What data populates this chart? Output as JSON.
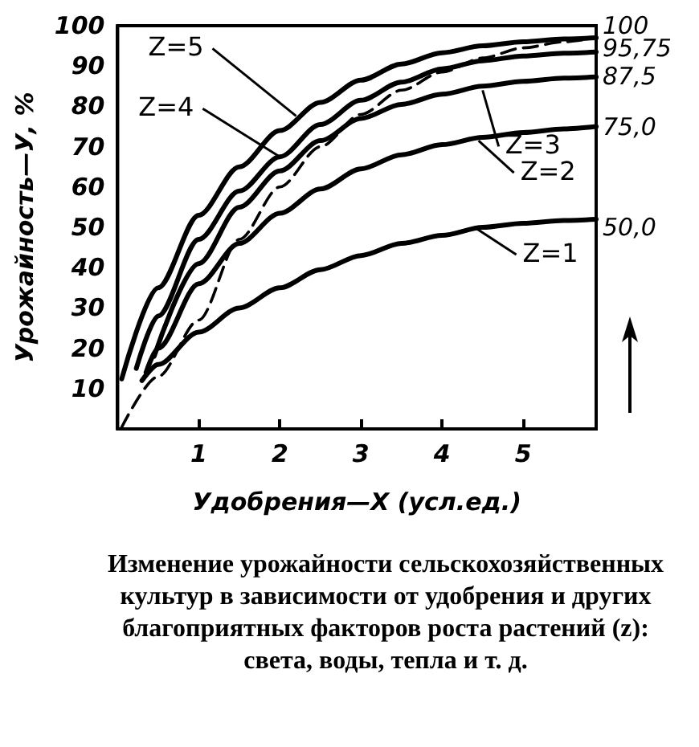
{
  "chart_data": {
    "type": "line",
    "title": "Изменение урожайности сельскохозяйственных культур в зависимости от удобрения и других благоприятных факторов роста растений (z): света, воды, тепла и т. д.",
    "xlabel": "Удобрения—X (усл.ед.)",
    "ylabel": "Урожайность—У, %",
    "xlim": [
      0,
      5.9
    ],
    "xticks": [
      1,
      2,
      3,
      4,
      5
    ],
    "ylim": [
      0,
      100
    ],
    "yticks": [
      10,
      20,
      30,
      40,
      50,
      60,
      70,
      80,
      90,
      100
    ],
    "y2lim": [
      0,
      100
    ],
    "y2ticks": [
      {
        "value": 100,
        "label": "100"
      },
      {
        "value": 95.75,
        "label": "95,75"
      },
      {
        "value": 87.5,
        "label": "87,5"
      },
      {
        "value": 75,
        "label": "75,0"
      },
      {
        "value": 50,
        "label": "50,0"
      }
    ],
    "grid": false,
    "marker": "none",
    "series": [
      {
        "color": "#000000",
        "line_style": "solid",
        "x": [
          0.3,
          0.5,
          1,
          1.5,
          2,
          2.5,
          3,
          3.5,
          4,
          4.5,
          5,
          5.5,
          5.9
        ],
        "values": [
          12,
          16,
          24,
          30,
          35,
          39.5,
          43,
          46,
          48,
          50,
          51,
          51.7,
          52
        ]
      },
      {
        "color": "#000000",
        "line_style": "solid",
        "x": [
          0.35,
          0.5,
          1,
          1.5,
          2,
          2.5,
          3,
          3.5,
          4,
          4.5,
          5,
          5.5,
          5.9
        ],
        "values": [
          14,
          20,
          36,
          46,
          53.5,
          59.5,
          64.5,
          68,
          70.5,
          72.3,
          73.5,
          74.4,
          75
        ]
      },
      {
        "color": "#000000",
        "line_style": "solid",
        "x": [
          0.45,
          1,
          1.5,
          2,
          2.5,
          3,
          3.5,
          4,
          4.5,
          5,
          5.5,
          5.9
        ],
        "values": [
          18,
          41,
          55,
          64,
          71.5,
          77,
          80.5,
          83,
          85,
          86.2,
          87,
          87.3
        ]
      },
      {
        "color": "#000000",
        "line_style": "solid",
        "x": [
          0.23,
          0.5,
          1,
          1.5,
          2,
          2.5,
          3,
          3.5,
          4,
          4.5,
          5,
          5.5,
          5.9
        ],
        "values": [
          15,
          28,
          47,
          59,
          67.5,
          75.5,
          81.5,
          86,
          89.3,
          91.3,
          92.5,
          93.2,
          93.5
        ]
      },
      {
        "color": "#000000",
        "line_style": "solid",
        "x": [
          0.05,
          0.5,
          1,
          1.5,
          2,
          2.5,
          3,
          3.5,
          4,
          4.5,
          5,
          5.5,
          5.9
        ],
        "values": [
          12.4,
          35,
          53,
          65,
          74,
          81,
          86.5,
          90.5,
          93.3,
          95,
          96,
          96.7,
          97
        ]
      },
      {
        "color": "#000000",
        "line_style": "dashed",
        "x": [
          0.05,
          0.5,
          1,
          1.5,
          2,
          2.5,
          3,
          3.5,
          4,
          4.5,
          5,
          5.5,
          5.9
        ],
        "values": [
          0.4,
          13,
          27,
          47,
          60,
          70,
          78,
          84,
          88.5,
          92,
          94.5,
          96,
          97
        ]
      }
    ],
    "annotations": [
      {
        "text": "Z=5",
        "x": 2.2,
        "y": 77.6
      },
      {
        "text": "Z=4",
        "x": 2.0,
        "y": 67.5
      },
      {
        "text": "Z=3",
        "x": 4.5,
        "y": 84
      },
      {
        "text": "Z=2",
        "x": 4.45,
        "y": 71.5
      },
      {
        "text": "Z=1",
        "x": 4.4,
        "y": 50
      }
    ]
  }
}
